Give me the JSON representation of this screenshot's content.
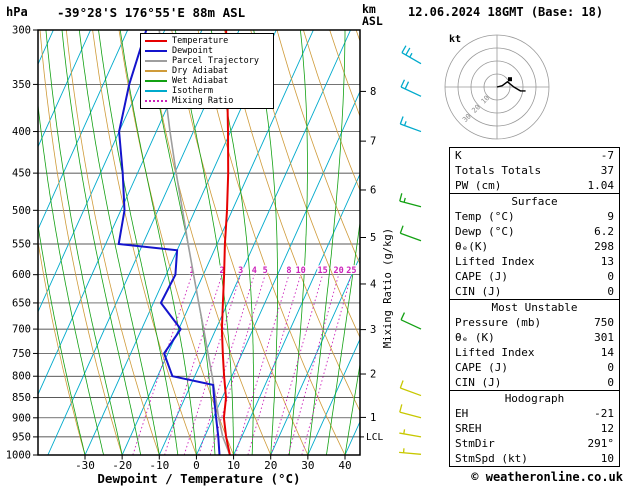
{
  "header": {
    "pressure_unit": "hPa",
    "title": "-39°28'S 176°55'E 88m ASL",
    "km_label_line1": "km",
    "km_label_line2": "ASL",
    "datetime": "12.06.2024 18GMT (Base: 18)"
  },
  "legend": {
    "items": [
      {
        "label": "Temperature",
        "color": "#e60000",
        "dash": false
      },
      {
        "label": "Dewpoint",
        "color": "#1414cc",
        "dash": false
      },
      {
        "label": "Parcel Trajectory",
        "color": "#9e9e9e",
        "dash": false
      },
      {
        "label": "Dry Adiabat",
        "color": "#cf9b3a",
        "dash": false
      },
      {
        "label": "Wet Adiabat",
        "color": "#13a113",
        "dash": false
      },
      {
        "label": "Isotherm",
        "color": "#00aacc",
        "dash": false
      },
      {
        "label": "Mixing Ratio",
        "color": "#cc22bb",
        "dash": true
      }
    ]
  },
  "axes": {
    "pressure_ticks": [
      300,
      350,
      400,
      450,
      500,
      550,
      600,
      650,
      700,
      750,
      800,
      850,
      900,
      950,
      1000
    ],
    "temp_ticks": [
      -30,
      -20,
      -10,
      0,
      10,
      20,
      30,
      40
    ],
    "temp_axis_label": "Dewpoint / Temperature (°C)",
    "mixing_ratio_axis_label": "Mixing Ratio (g/kg)",
    "km_ticks": [
      [
        1,
        899
      ],
      [
        2,
        795
      ],
      [
        3,
        701
      ],
      [
        4,
        616
      ],
      [
        5,
        540
      ],
      [
        6,
        472
      ],
      [
        7,
        411
      ],
      [
        8,
        357
      ]
    ],
    "lcl_label": "LCL"
  },
  "chart_data": {
    "type": "line",
    "title": "Skew-T log-P sounding",
    "pressure_range_hpa": [
      300,
      1000
    ],
    "temp_range_c": [
      -30,
      40
    ],
    "isotherms_c": [
      -90,
      -80,
      -70,
      -60,
      -50,
      -40,
      -30,
      -20,
      -10,
      0,
      10,
      20,
      30,
      40
    ],
    "dry_adiabats_theta_c": [
      -30,
      -20,
      -10,
      0,
      10,
      20,
      30,
      40,
      50,
      60,
      70,
      80,
      90,
      100
    ],
    "wet_adiabats_tw_c": [
      -30,
      -25,
      -20,
      -15,
      -10,
      -5,
      0,
      5,
      10,
      15,
      20,
      25,
      30,
      35,
      40
    ],
    "mixing_ratio_g_per_kg": [
      1,
      2,
      3,
      4,
      5,
      8,
      10,
      15,
      20,
      25
    ],
    "mixing_ratio_label_pressure_hpa": 600,
    "lcl_pressure_hpa": 950,
    "style": {
      "isotherm": "#00aacc",
      "dry_adiabat": "#cf9b3a",
      "wet_adiabat": "#13a113",
      "mixing_ratio": "#cc22bb",
      "grid": "#222222"
    },
    "series": [
      {
        "name": "Parcel Trajectory",
        "color": "#9e9e9e",
        "points": [
          [
            1000,
            9
          ],
          [
            950,
            4.9
          ],
          [
            900,
            1.5
          ],
          [
            850,
            -1.8
          ],
          [
            800,
            -5.3
          ],
          [
            750,
            -9.2
          ],
          [
            700,
            -13.3
          ],
          [
            650,
            -17.8
          ],
          [
            600,
            -22.6
          ],
          [
            550,
            -27.8
          ],
          [
            500,
            -33.4
          ],
          [
            450,
            -39.6
          ],
          [
            400,
            -46.3
          ],
          [
            350,
            -53.6
          ],
          [
            300,
            -61.5
          ]
        ]
      },
      {
        "name": "Dewpoint",
        "color": "#1414cc",
        "points": [
          [
            1000,
            6.2
          ],
          [
            950,
            3.7
          ],
          [
            900,
            0.8
          ],
          [
            850,
            -2.2
          ],
          [
            820,
            -4
          ],
          [
            800,
            -16
          ],
          [
            750,
            -21
          ],
          [
            700,
            -19.5
          ],
          [
            650,
            -28
          ],
          [
            600,
            -27.5
          ],
          [
            560,
            -30
          ],
          [
            550,
            -46.5
          ],
          [
            500,
            -49
          ],
          [
            450,
            -54
          ],
          [
            400,
            -60
          ],
          [
            350,
            -63
          ],
          [
            300,
            -65
          ]
        ]
      },
      {
        "name": "Temperature",
        "color": "#e60000",
        "points": [
          [
            1000,
            9
          ],
          [
            950,
            5.8
          ],
          [
            900,
            2.9
          ],
          [
            850,
            1.0
          ],
          [
            800,
            -2.1
          ],
          [
            750,
            -5.2
          ],
          [
            700,
            -8.4
          ],
          [
            650,
            -11.3
          ],
          [
            600,
            -14.4
          ],
          [
            550,
            -17.9
          ],
          [
            500,
            -21.4
          ],
          [
            450,
            -25.6
          ],
          [
            400,
            -30.7
          ],
          [
            350,
            -36.6
          ],
          [
            300,
            -43.5
          ]
        ]
      }
    ],
    "wind_barbs": [
      {
        "pressure": 330,
        "speed_kt": 25,
        "direction_deg": 300,
        "color": "#00aacc"
      },
      {
        "pressure": 362,
        "speed_kt": 20,
        "direction_deg": 295,
        "color": "#00aacc"
      },
      {
        "pressure": 400,
        "speed_kt": 15,
        "direction_deg": 290,
        "color": "#00aacc"
      },
      {
        "pressure": 495,
        "speed_kt": 15,
        "direction_deg": 285,
        "color": "#13a113"
      },
      {
        "pressure": 545,
        "speed_kt": 10,
        "direction_deg": 290,
        "color": "#13a113"
      },
      {
        "pressure": 700,
        "speed_kt": 10,
        "direction_deg": 295,
        "color": "#13a113"
      },
      {
        "pressure": 845,
        "speed_kt": 10,
        "direction_deg": 290,
        "color": "#c8c800"
      },
      {
        "pressure": 900,
        "speed_kt": 10,
        "direction_deg": 285,
        "color": "#c8c800"
      },
      {
        "pressure": 950,
        "speed_kt": 5,
        "direction_deg": 280,
        "color": "#c8c800"
      },
      {
        "pressure": 998,
        "speed_kt": 5,
        "direction_deg": 275,
        "color": "#c8c800"
      }
    ]
  },
  "hodograph": {
    "unit_label": "kt",
    "ring_radii_kt": [
      10,
      20,
      30,
      40
    ],
    "ring_labels": [
      "10",
      "20",
      "30"
    ],
    "trace_kt": [
      [
        0,
        0
      ],
      [
        4,
        -1
      ],
      [
        8,
        -4
      ],
      [
        13,
        0
      ],
      [
        18,
        3
      ],
      [
        22,
        3
      ]
    ],
    "marker_kt": [
      10,
      -6
    ]
  },
  "stats": {
    "indices": {
      "rows": [
        [
          "K",
          "-7"
        ],
        [
          "Totals Totals",
          "37"
        ],
        [
          "PW (cm)",
          "1.04"
        ]
      ]
    },
    "surface": {
      "header": "Surface",
      "rows": [
        [
          "Temp (°C)",
          "9"
        ],
        [
          "Dewp (°C)",
          "6.2"
        ],
        [
          "θₑ(K)",
          "298"
        ],
        [
          "Lifted Index",
          "13"
        ],
        [
          "CAPE (J)",
          "0"
        ],
        [
          "CIN (J)",
          "0"
        ]
      ]
    },
    "most_unstable": {
      "header": "Most Unstable",
      "rows": [
        [
          "Pressure (mb)",
          "750"
        ],
        [
          "θₑ (K)",
          "301"
        ],
        [
          "Lifted Index",
          "14"
        ],
        [
          "CAPE (J)",
          "0"
        ],
        [
          "CIN (J)",
          "0"
        ]
      ]
    },
    "hodograph_box": {
      "header": "Hodograph",
      "rows": [
        [
          "EH",
          "-21"
        ],
        [
          "SREH",
          "12"
        ],
        [
          "StmDir",
          "291°"
        ],
        [
          "StmSpd (kt)",
          "10"
        ]
      ]
    }
  },
  "footer": {
    "copyright": "© weatheronline.co.uk"
  }
}
